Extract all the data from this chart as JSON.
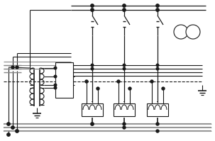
{
  "figsize": [
    3.03,
    1.99
  ],
  "dpi": 100,
  "dark": "#1a1a1a",
  "gray": "#888888",
  "light_gray": "#aaaaaa"
}
